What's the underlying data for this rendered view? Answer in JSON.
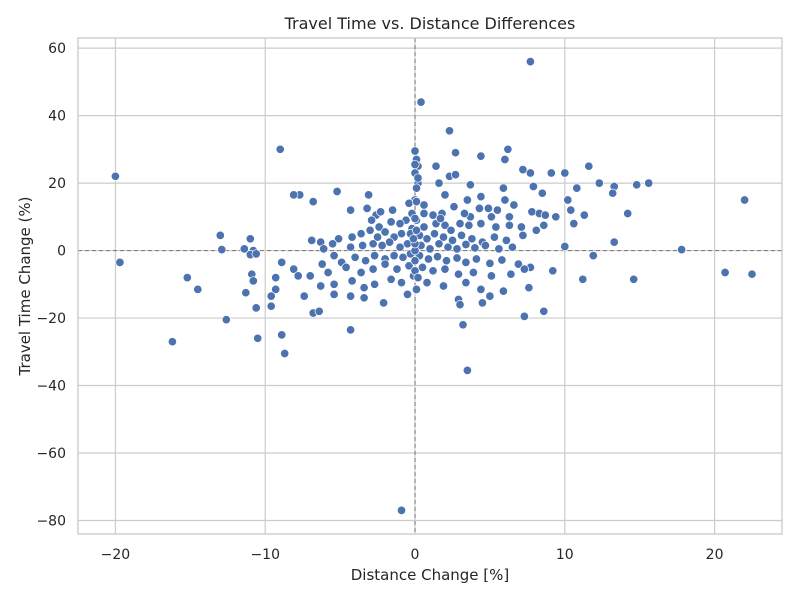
{
  "chart_data": {
    "type": "scatter",
    "title": "Travel Time vs. Distance Differences",
    "xlabel": "Distance Change [%]",
    "ylabel": "Travel Time Change (%)",
    "xlim": [
      -22.5,
      24.5
    ],
    "ylim": [
      -84,
      63
    ],
    "xticks": [
      -20,
      -10,
      0,
      10,
      20
    ],
    "yticks": [
      -80,
      -60,
      -40,
      -20,
      0,
      20,
      40,
      60
    ],
    "xtick_labels": [
      "−20",
      "−10",
      "0",
      "10",
      "20"
    ],
    "ytick_labels": [
      "−80",
      "−60",
      "−40",
      "−20",
      "0",
      "20",
      "40",
      "60"
    ],
    "reference_lines": {
      "x": 0,
      "y": 0,
      "style": "dashed",
      "color": "#808080"
    },
    "grid": true,
    "marker_color": "#4c72b0",
    "points": [
      [
        7.7,
        56
      ],
      [
        0.4,
        44
      ],
      [
        2.3,
        35.5
      ],
      [
        -9,
        30
      ],
      [
        0,
        29.5
      ],
      [
        6.2,
        30
      ],
      [
        2.7,
        29
      ],
      [
        0.1,
        27
      ],
      [
        0.2,
        25
      ],
      [
        1.4,
        25
      ],
      [
        0,
        23
      ],
      [
        2.3,
        22
      ],
      [
        2.7,
        22.5
      ],
      [
        -20,
        22
      ],
      [
        4.4,
        28
      ],
      [
        6,
        27
      ],
      [
        7.2,
        24
      ],
      [
        7.7,
        23
      ],
      [
        9.1,
        23
      ],
      [
        10,
        23
      ],
      [
        11.6,
        25
      ],
      [
        0.2,
        20
      ],
      [
        0.1,
        18.5
      ],
      [
        1.6,
        20
      ],
      [
        3.7,
        19.5
      ],
      [
        5.9,
        18.5
      ],
      [
        7.9,
        19
      ],
      [
        10.8,
        18.5
      ],
      [
        12.3,
        20
      ],
      [
        13.3,
        19
      ],
      [
        14.8,
        19.5
      ],
      [
        15.6,
        20
      ],
      [
        0,
        15
      ],
      [
        -0.4,
        14
      ],
      [
        0.6,
        13.5
      ],
      [
        2,
        16.5
      ],
      [
        -5.2,
        17.5
      ],
      [
        -6.8,
        14.5
      ],
      [
        -7.7,
        16.5
      ],
      [
        -8.1,
        16.5
      ],
      [
        -3.1,
        16.5
      ],
      [
        3.5,
        15
      ],
      [
        4.4,
        16
      ],
      [
        4.9,
        12.5
      ],
      [
        5.1,
        10
      ],
      [
        6,
        15
      ],
      [
        6.6,
        13.5
      ],
      [
        8.5,
        17
      ],
      [
        10.2,
        15
      ],
      [
        13.2,
        17
      ],
      [
        0.6,
        11
      ],
      [
        1.2,
        10.5
      ],
      [
        1.8,
        11
      ],
      [
        2.6,
        13
      ],
      [
        3.7,
        10
      ],
      [
        4.3,
        12.5
      ],
      [
        5.5,
        12
      ],
      [
        6.3,
        10
      ],
      [
        7.8,
        11.5
      ],
      [
        8.3,
        11
      ],
      [
        8.7,
        10.5
      ],
      [
        9.4,
        10
      ],
      [
        10.4,
        12
      ],
      [
        11.3,
        10.5
      ],
      [
        14.2,
        11
      ],
      [
        -0.6,
        9
      ],
      [
        -1,
        8
      ],
      [
        -1.6,
        8.5
      ],
      [
        -2.4,
        7
      ],
      [
        -2.6,
        10.5
      ],
      [
        -3.2,
        12.5
      ],
      [
        -4.3,
        12
      ],
      [
        -0.2,
        6.5
      ],
      [
        0.1,
        9
      ],
      [
        0.6,
        7
      ],
      [
        1.4,
        8
      ],
      [
        2,
        7.5
      ],
      [
        2.4,
        6
      ],
      [
        3,
        8
      ],
      [
        3.6,
        7.5
      ],
      [
        4.4,
        8
      ],
      [
        5.4,
        7
      ],
      [
        6.3,
        7.5
      ],
      [
        7.1,
        7
      ],
      [
        8.1,
        6
      ],
      [
        8.6,
        7.5
      ],
      [
        10.6,
        8
      ],
      [
        -0.3,
        5
      ],
      [
        -0.9,
        5
      ],
      [
        -1.4,
        4
      ],
      [
        -2,
        5.5
      ],
      [
        -2.5,
        4
      ],
      [
        -3,
        6
      ],
      [
        -3.6,
        5
      ],
      [
        -4.2,
        4
      ],
      [
        -5.1,
        3.5
      ],
      [
        -6.3,
        2.5
      ],
      [
        -6.9,
        3
      ],
      [
        0.3,
        4.5
      ],
      [
        0.8,
        3.5
      ],
      [
        1.3,
        5
      ],
      [
        1.9,
        4
      ],
      [
        2.5,
        3
      ],
      [
        3.1,
        4.5
      ],
      [
        3.8,
        3.5
      ],
      [
        4.5,
        2.5
      ],
      [
        5.3,
        4
      ],
      [
        6.1,
        3
      ],
      [
        7.2,
        4.5
      ],
      [
        10,
        1.2
      ],
      [
        13.3,
        2.5
      ],
      [
        -0.5,
        2
      ],
      [
        -1,
        1
      ],
      [
        -1.7,
        2.5
      ],
      [
        -2.2,
        1.5
      ],
      [
        -2.8,
        2
      ],
      [
        -3.5,
        1.5
      ],
      [
        -4.3,
        1
      ],
      [
        -5.5,
        2
      ],
      [
        -6.1,
        0.5
      ],
      [
        -10.8,
        0
      ],
      [
        -11.4,
        0.5
      ],
      [
        -13,
        4.5
      ],
      [
        -12.9,
        0.3
      ],
      [
        -11,
        3.5
      ],
      [
        0.4,
        1.5
      ],
      [
        1,
        0.5
      ],
      [
        1.6,
        2
      ],
      [
        2.2,
        1
      ],
      [
        2.8,
        0.5
      ],
      [
        3.4,
        1.8
      ],
      [
        4,
        0.8
      ],
      [
        4.7,
        1.5
      ],
      [
        5.6,
        0.5
      ],
      [
        6.5,
        1
      ],
      [
        17.8,
        0.3
      ],
      [
        -0.3,
        -1
      ],
      [
        -0.8,
        -2
      ],
      [
        -1.4,
        -1.5
      ],
      [
        -2,
        -2.5
      ],
      [
        -2.7,
        -1.5
      ],
      [
        -3.3,
        -3
      ],
      [
        -4,
        -2
      ],
      [
        -4.9,
        -3.5
      ],
      [
        -5.4,
        -1.5
      ],
      [
        -6.2,
        -4
      ],
      [
        -8.1,
        -5.5
      ],
      [
        -8.9,
        -3.5
      ],
      [
        -11,
        -1.2
      ],
      [
        -10.6,
        -1
      ],
      [
        0.3,
        -1.5
      ],
      [
        0.9,
        -2.5
      ],
      [
        1.5,
        -1.8
      ],
      [
        2.1,
        -3
      ],
      [
        2.8,
        -2.2
      ],
      [
        3.4,
        -3.5
      ],
      [
        4.1,
        -2.5
      ],
      [
        5,
        -3.8
      ],
      [
        5.8,
        -2.8
      ],
      [
        6.9,
        -4
      ],
      [
        7.7,
        -5
      ],
      [
        11.9,
        -1.5
      ],
      [
        -0.4,
        -4.5
      ],
      [
        -1.2,
        -5.5
      ],
      [
        -2,
        -4
      ],
      [
        -2.8,
        -5.5
      ],
      [
        -3.6,
        -6.5
      ],
      [
        -4.6,
        -5
      ],
      [
        -5.8,
        -6.5
      ],
      [
        -7,
        -7.5
      ],
      [
        -7.8,
        -7.5
      ],
      [
        -9.3,
        -8
      ],
      [
        -10.9,
        -7
      ],
      [
        0.5,
        -5
      ],
      [
        1.2,
        -6
      ],
      [
        2,
        -5.5
      ],
      [
        2.9,
        -7
      ],
      [
        3.9,
        -6.5
      ],
      [
        5.1,
        -7.5
      ],
      [
        6.4,
        -7
      ],
      [
        7.3,
        -5.5
      ],
      [
        9.2,
        -6
      ],
      [
        -0.1,
        -7.5
      ],
      [
        -0.9,
        -9.5
      ],
      [
        -1.6,
        -8.5
      ],
      [
        -2.7,
        -10
      ],
      [
        -3.4,
        -11
      ],
      [
        -4.2,
        -9
      ],
      [
        -5.4,
        -10
      ],
      [
        -6.3,
        -10.5
      ],
      [
        -7.4,
        -13.5
      ],
      [
        -9.3,
        -11.5
      ],
      [
        -9.6,
        -13.5
      ],
      [
        -10.8,
        -9
      ],
      [
        -11.3,
        -12.5
      ],
      [
        -14.5,
        -11.5
      ],
      [
        -15.2,
        -8
      ],
      [
        0.1,
        -11.5
      ],
      [
        0.8,
        -9.5
      ],
      [
        1.9,
        -10.5
      ],
      [
        3.4,
        -9.5
      ],
      [
        4.4,
        -11.5
      ],
      [
        5.9,
        -12
      ],
      [
        7.6,
        -11
      ],
      [
        11.2,
        -8.5
      ],
      [
        14.6,
        -8.5
      ],
      [
        20.7,
        -6.5
      ],
      [
        22.5,
        -7
      ],
      [
        -0.5,
        -13
      ],
      [
        -2.1,
        -15.5
      ],
      [
        -3.4,
        -14
      ],
      [
        -4.3,
        -13.5
      ],
      [
        -5.4,
        -13
      ],
      [
        -6.8,
        -18.5
      ],
      [
        -6.4,
        -18
      ],
      [
        -9.6,
        -16.5
      ],
      [
        -10.6,
        -17
      ],
      [
        -12.6,
        -20.5
      ],
      [
        2.9,
        -14.5
      ],
      [
        3,
        -16
      ],
      [
        4.5,
        -15.5
      ],
      [
        5,
        -13.5
      ],
      [
        7.3,
        -19.5
      ],
      [
        8.6,
        -18
      ],
      [
        -4.3,
        -23.5
      ],
      [
        3.2,
        -22
      ],
      [
        -8.9,
        -25
      ],
      [
        -10.5,
        -26
      ],
      [
        -16.2,
        -27
      ],
      [
        -8.7,
        -30.5
      ],
      [
        3.5,
        -35.5
      ],
      [
        -19.7,
        -3.5
      ],
      [
        22,
        15
      ],
      [
        -0.9,
        -77
      ],
      [
        0,
        0
      ],
      [
        0,
        2
      ],
      [
        0,
        -3
      ],
      [
        0.1,
        6
      ],
      [
        -0.2,
        11
      ],
      [
        0.1,
        14.5
      ],
      [
        0.2,
        21.5
      ],
      [
        0,
        -6
      ],
      [
        0.2,
        -8
      ],
      [
        -0.1,
        3.5
      ],
      [
        0,
        25.5
      ],
      [
        0,
        9.5
      ],
      [
        -1.5,
        12
      ],
      [
        -2.3,
        11.5
      ],
      [
        -2.9,
        9
      ],
      [
        1.7,
        9.5
      ],
      [
        3.3,
        11
      ]
    ]
  }
}
